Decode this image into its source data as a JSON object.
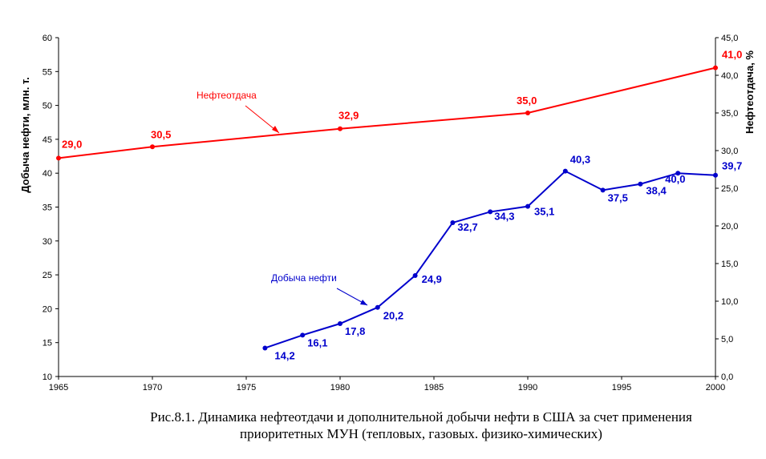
{
  "chart_data": {
    "type": "line",
    "caption": [
      "Рис.8.1. Динамика нефтеотдачи и дополнительной добычи нефти в США за счет применения",
      "приоритетных МУН (тепловых, газовых. физико-химических)"
    ],
    "left_axis": {
      "label": "Добыча нефти, млн. т.",
      "ylim": [
        10,
        60
      ],
      "ticks": [
        "10",
        "15",
        "20",
        "25",
        "30",
        "35",
        "40",
        "45",
        "50",
        "55",
        "60"
      ]
    },
    "right_axis": {
      "label": "Нефтеотдача, %",
      "ylim": [
        0,
        45
      ],
      "ticks": [
        "0,0",
        "5,0",
        "10,0",
        "15,0",
        "20,0",
        "25,0",
        "30,0",
        "35,0",
        "40,0",
        "45,0"
      ]
    },
    "x_axis": {
      "xlim": [
        1965,
        2000
      ],
      "ticks": [
        "1965",
        "1970",
        "1975",
        "1980",
        "1985",
        "1990",
        "1995",
        "2000"
      ]
    },
    "grid": false,
    "series": [
      {
        "name": "Нефтеотдача",
        "axis": "right",
        "color": "#ff0000",
        "x": [
          1965,
          1970,
          1980,
          1990,
          2000
        ],
        "values": [
          29.0,
          30.5,
          32.9,
          35.0,
          41.0
        ],
        "labels": [
          "29,0",
          "30,5",
          "32,9",
          "35,0",
          "41,0"
        ]
      },
      {
        "name": "Добыча нефти",
        "axis": "left",
        "color": "#0000cc",
        "x": [
          1976,
          1978,
          1980,
          1982,
          1984,
          1986,
          1988,
          1990,
          1992,
          1994,
          1996,
          1998,
          2000
        ],
        "values": [
          14.2,
          16.1,
          17.8,
          20.2,
          24.9,
          32.7,
          34.3,
          35.1,
          40.3,
          37.5,
          38.4,
          40.0,
          39.7
        ],
        "labels": [
          "14,2",
          "16,1",
          "17,8",
          "20,2",
          "24,9",
          "32,7",
          "34,3",
          "35,1",
          "40,3",
          "37,5",
          "38,4",
          "40,0",
          "39,7"
        ]
      }
    ]
  }
}
